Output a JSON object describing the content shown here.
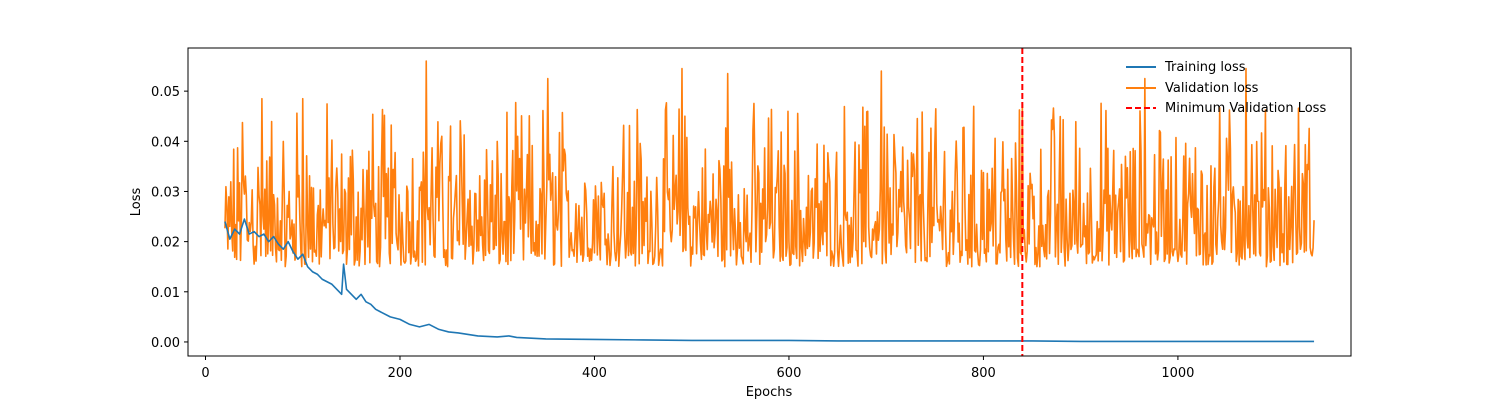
{
  "chart_data": {
    "type": "line",
    "xlabel": "Epochs",
    "ylabel": "Loss",
    "xlim": [
      -18,
      1178
    ],
    "ylim": [
      -0.0028,
      0.0586
    ],
    "x_ticks": [
      0,
      200,
      400,
      600,
      800,
      1000
    ],
    "y_ticks": [
      0.0,
      0.01,
      0.02,
      0.03,
      0.04,
      0.05
    ],
    "y_tick_labels": [
      "0.00",
      "0.01",
      "0.02",
      "0.03",
      "0.04",
      "0.05"
    ],
    "grid": false,
    "legend_position": "top-right",
    "series": [
      {
        "name": "Training loss",
        "color": "#1f77b4",
        "x": [
          20,
          25,
          30,
          35,
          40,
          45,
          50,
          55,
          60,
          65,
          70,
          75,
          80,
          85,
          90,
          95,
          100,
          105,
          110,
          115,
          120,
          125,
          130,
          135,
          140,
          142,
          145,
          150,
          155,
          160,
          165,
          170,
          175,
          180,
          190,
          200,
          210,
          220,
          230,
          240,
          250,
          260,
          270,
          280,
          300,
          312,
          320,
          350,
          400,
          450,
          500,
          550,
          600,
          650,
          700,
          750,
          800,
          850,
          900,
          950,
          1000,
          1050,
          1100,
          1140
        ],
        "y": [
          0.024,
          0.0205,
          0.0225,
          0.0215,
          0.0245,
          0.0215,
          0.022,
          0.021,
          0.0215,
          0.02,
          0.021,
          0.0195,
          0.0185,
          0.02,
          0.018,
          0.0165,
          0.0175,
          0.015,
          0.014,
          0.0135,
          0.0125,
          0.012,
          0.0115,
          0.0105,
          0.0095,
          0.0155,
          0.0105,
          0.0095,
          0.0085,
          0.0095,
          0.008,
          0.0075,
          0.0065,
          0.006,
          0.005,
          0.0045,
          0.0035,
          0.003,
          0.0035,
          0.0025,
          0.002,
          0.0018,
          0.0015,
          0.0012,
          0.001,
          0.0012,
          0.0009,
          0.0006,
          0.0005,
          0.0004,
          0.0003,
          0.0003,
          0.0003,
          0.0002,
          0.0002,
          0.0002,
          0.0002,
          0.0002,
          0.0001,
          0.0001,
          0.0001,
          0.0001,
          0.0001,
          0.0001
        ]
      },
      {
        "name": "Validation loss",
        "color": "#ff7f0e",
        "x_range": [
          20,
          1140
        ],
        "value_range": [
          0.0145,
          0.056
        ],
        "peaks": [
          {
            "x": 58,
            "y": 0.0485
          },
          {
            "x": 100,
            "y": 0.0485
          },
          {
            "x": 227,
            "y": 0.056
          },
          {
            "x": 352,
            "y": 0.0525
          },
          {
            "x": 490,
            "y": 0.0545
          },
          {
            "x": 537,
            "y": 0.0535
          },
          {
            "x": 695,
            "y": 0.054
          },
          {
            "x": 966,
            "y": 0.0525
          },
          {
            "x": 1070,
            "y": 0.0545
          }
        ]
      }
    ],
    "markers": [
      {
        "name": "Minimum Validation Loss",
        "type": "vline",
        "x": 840,
        "color": "#ff0000",
        "style": "dashed"
      }
    ]
  }
}
